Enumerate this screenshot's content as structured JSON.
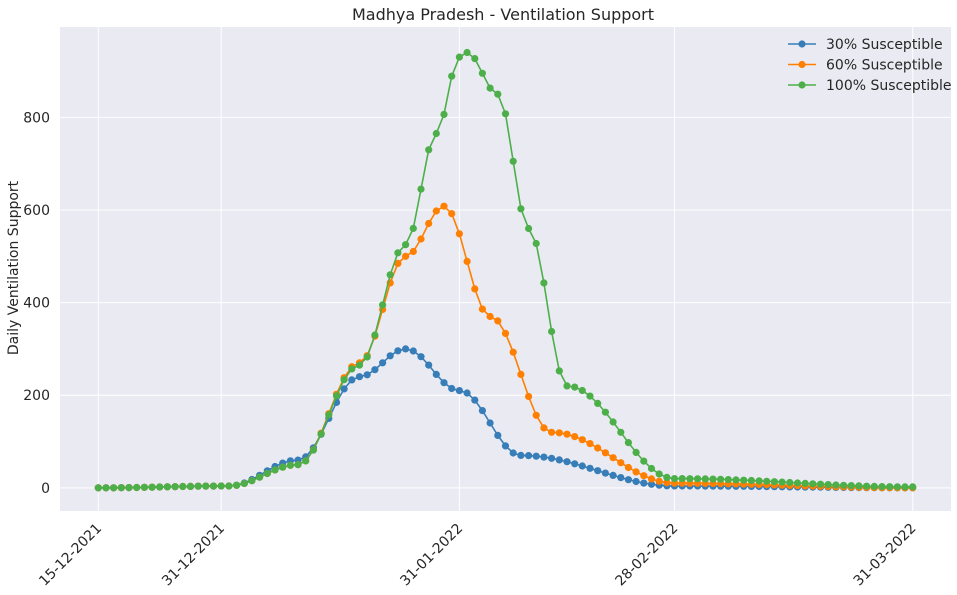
{
  "chart_data": {
    "type": "line",
    "title": "Madhya Pradesh - Ventilation Support",
    "xlabel": "",
    "ylabel": "Daily Ventilation Support",
    "x_start_date": "15-12-2021",
    "x_end_date": "31-03-2022",
    "x_tick_labels": [
      "15-12-2021",
      "31-12-2021",
      "31-01-2022",
      "28-02-2022",
      "31-03-2022"
    ],
    "y_tick_labels": [
      "0",
      "200",
      "400",
      "600",
      "800"
    ],
    "ylim": [
      -50,
      995
    ],
    "grid": true,
    "legend_position": "top-right",
    "series": [
      {
        "name": "30% Susceptible",
        "color": "#377eb8",
        "x": [
          "15-12-2021",
          "01-01-2022",
          "10-01-2022",
          "18-01-2022",
          "24-01-2022",
          "31-01-2022",
          "08-02-2022",
          "28-02-2022",
          "31-03-2022"
        ],
        "y": [
          0,
          4,
          60,
          240,
          300,
          210,
          70,
          4,
          0
        ]
      },
      {
        "name": "60% Susceptible",
        "color": "#ff7f00",
        "x": [
          "15-12-2021",
          "01-01-2022",
          "10-01-2022",
          "18-01-2022",
          "24-01-2022",
          "29-01-2022",
          "04-02-2022",
          "12-02-2022",
          "28-02-2022",
          "31-03-2022"
        ],
        "y": [
          0,
          4,
          50,
          270,
          500,
          608,
          370,
          120,
          10,
          0
        ]
      },
      {
        "name": "100% Susceptible",
        "color": "#4daf4a",
        "x": [
          "15-12-2021",
          "01-01-2022",
          "10-01-2022",
          "18-01-2022",
          "24-01-2022",
          "28-01-2022",
          "31-01-2022",
          "01-02-2022",
          "05-02-2022",
          "09-02-2022",
          "14-02-2022",
          "28-02-2022",
          "31-03-2022"
        ],
        "y": [
          0,
          4,
          50,
          265,
          525,
          765,
          930,
          940,
          850,
          560,
          220,
          20,
          2
        ]
      }
    ]
  }
}
